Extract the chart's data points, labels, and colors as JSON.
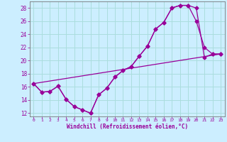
{
  "xlabel": "Windchill (Refroidissement éolien,°C)",
  "bg_color": "#cceeff",
  "line_color": "#990099",
  "grid_color": "#aadddd",
  "xlim": [
    -0.5,
    23.5
  ],
  "ylim": [
    11.5,
    29.0
  ],
  "yticks": [
    12,
    14,
    16,
    18,
    20,
    22,
    24,
    26,
    28
  ],
  "xticks": [
    0,
    1,
    2,
    3,
    4,
    5,
    6,
    7,
    8,
    9,
    10,
    11,
    12,
    13,
    14,
    15,
    16,
    17,
    18,
    19,
    20,
    21,
    22,
    23
  ],
  "series1_x": [
    0,
    1,
    2,
    3,
    4,
    5,
    6,
    7,
    8,
    9,
    10,
    11,
    12,
    13,
    14,
    15,
    16,
    17,
    18,
    19,
    20,
    21,
    22,
    23
  ],
  "series1_y": [
    16.5,
    15.2,
    15.3,
    16.1,
    14.1,
    13.0,
    12.5,
    12.0,
    14.8,
    15.8,
    17.5,
    18.5,
    19.1,
    20.7,
    22.2,
    24.8,
    25.8,
    28.0,
    28.4,
    28.4,
    28.0,
    20.5,
    21.0,
    21.0
  ],
  "series2_x": [
    0,
    1,
    2,
    3,
    4,
    5,
    6,
    7,
    8,
    9,
    10,
    11,
    12,
    13,
    14,
    15,
    16,
    17,
    18,
    19,
    20,
    21,
    22,
    23
  ],
  "series2_y": [
    16.5,
    15.2,
    15.3,
    16.1,
    14.1,
    13.0,
    12.5,
    12.0,
    14.8,
    15.8,
    17.5,
    18.5,
    19.1,
    20.7,
    22.2,
    24.8,
    25.8,
    28.0,
    28.4,
    28.4,
    26.0,
    22.0,
    21.0,
    21.0
  ],
  "series3_x": [
    0,
    23
  ],
  "series3_y": [
    16.5,
    21.0
  ]
}
